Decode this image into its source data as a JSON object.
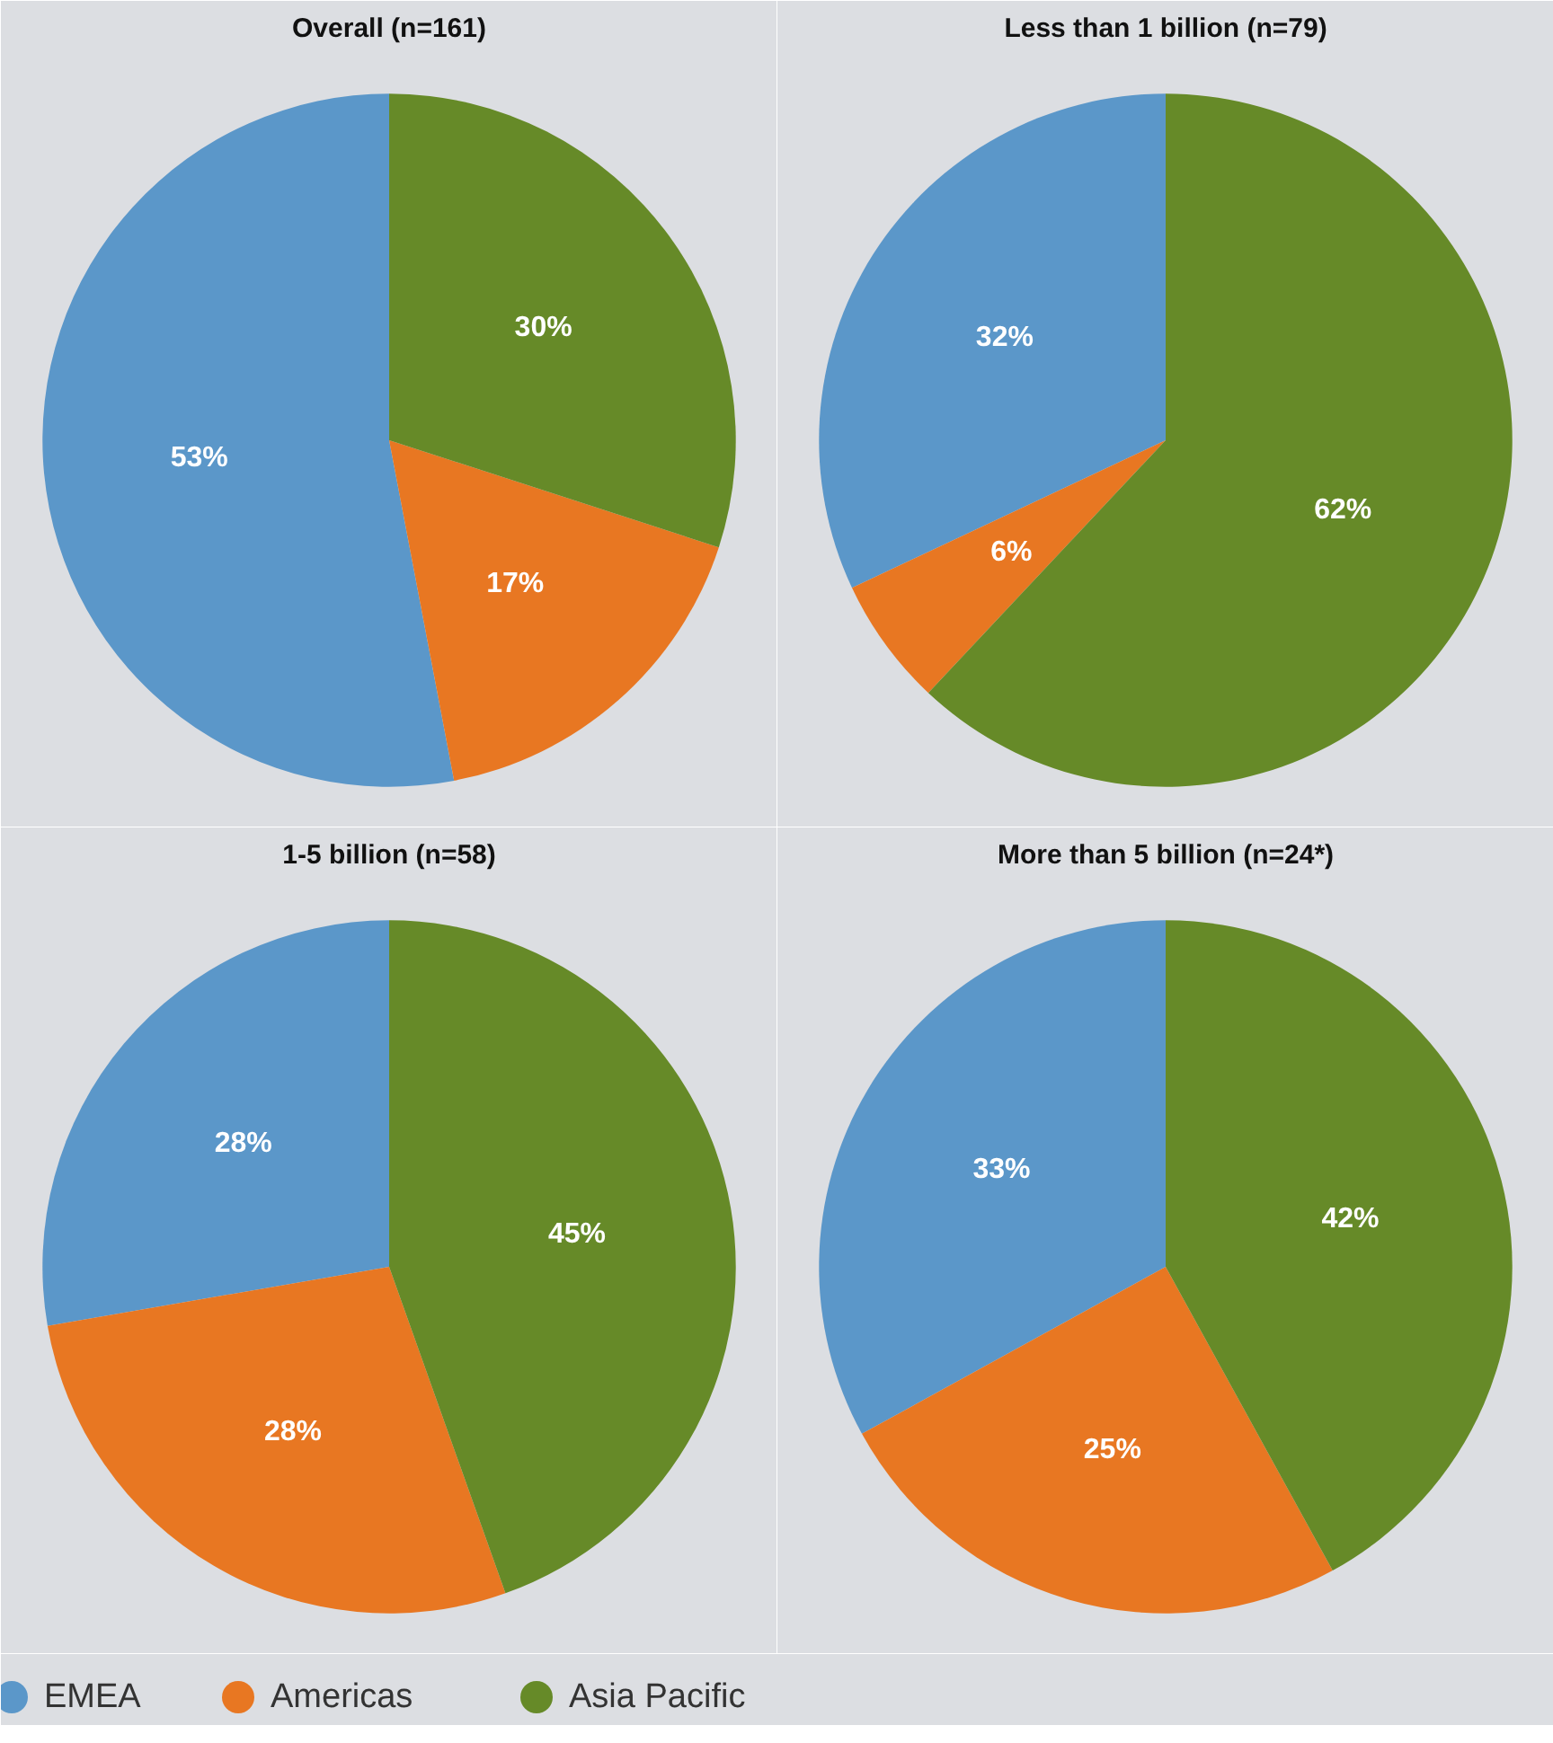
{
  "chart_data": [
    {
      "type": "pie",
      "title": "Overall (n=161)",
      "categories": [
        "EMEA",
        "Americas",
        "Asia Pacific"
      ],
      "values": [
        53,
        17,
        30
      ],
      "value_labels": [
        "53%",
        "17%",
        "30%"
      ],
      "colors": [
        "#5b97c9",
        "#e87722",
        "#668a28"
      ],
      "legend": "bottom"
    },
    {
      "type": "pie",
      "title": "Less than 1 billion (n=79)",
      "values": [
        32,
        6,
        62
      ],
      "value_labels": [
        "32%",
        "6%",
        "62%"
      ],
      "colors": [
        "#5b97c9",
        "#e87722",
        "#668a28"
      ]
    },
    {
      "type": "pie",
      "title": "1-5 billion (n=58)",
      "values": [
        28,
        28,
        45
      ],
      "value_labels": [
        "28%",
        "28%",
        "45%"
      ],
      "colors": [
        "#5b97c9",
        "#e87722",
        "#668a28"
      ]
    },
    {
      "type": "pie",
      "title": "More than 5 billion (n=24*)",
      "values": [
        33,
        25,
        42
      ],
      "value_labels": [
        "33%",
        "25%",
        "42%"
      ],
      "colors": [
        "#5b97c9",
        "#e87722",
        "#668a28"
      ]
    }
  ]
}
